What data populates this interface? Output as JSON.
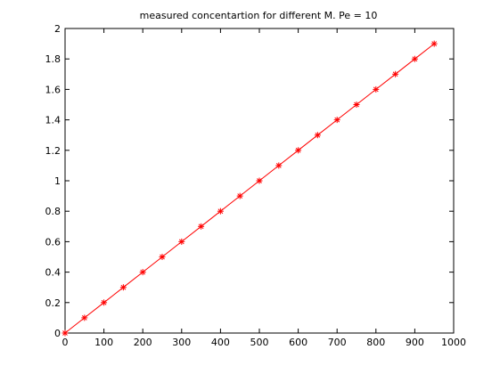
{
  "chart_data": {
    "type": "line",
    "title": "measured concentartion for different M. Pe = 10",
    "xlabel": "",
    "ylabel": "",
    "xlim": [
      0,
      1000
    ],
    "ylim": [
      0,
      2
    ],
    "x_ticks": [
      0,
      100,
      200,
      300,
      400,
      500,
      600,
      700,
      800,
      900,
      1000
    ],
    "y_ticks": [
      0,
      0.2,
      0.4,
      0.6,
      0.8,
      1,
      1.2,
      1.4,
      1.6,
      1.8,
      2
    ],
    "grid": false,
    "series": [
      {
        "color": "#ff0000",
        "marker": "asterisk",
        "x": [
          0,
          50,
          100,
          150,
          200,
          250,
          300,
          350,
          400,
          450,
          500,
          550,
          600,
          650,
          700,
          750,
          800,
          850,
          900,
          950
        ],
        "y": [
          0,
          0.1,
          0.2,
          0.3,
          0.4,
          0.5,
          0.6,
          0.7,
          0.8,
          0.9,
          1.0,
          1.1,
          1.2,
          1.3,
          1.4,
          1.5,
          1.6,
          1.7,
          1.8,
          1.9
        ]
      }
    ]
  }
}
